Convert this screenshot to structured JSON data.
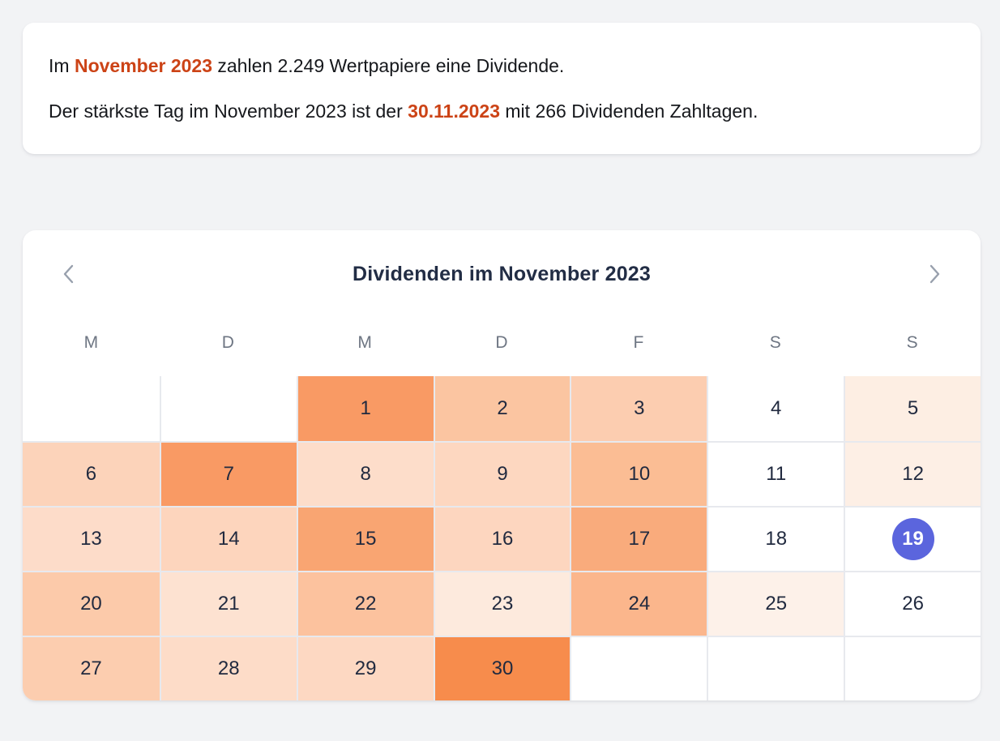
{
  "page": {
    "background": "#f2f3f5"
  },
  "summary_card": {
    "highlight_color": "#cc4316",
    "line1": {
      "prefix": "Im ",
      "highlight": "November 2023",
      "suffix": " zahlen 2.249 Wertpapiere eine Dividende."
    },
    "line2": {
      "prefix": "Der stärkste Tag im November 2023 ist der ",
      "highlight": "30.11.2023",
      "suffix": " mit 266 Dividenden Zahltagen."
    }
  },
  "calendar": {
    "title": "Dividenden im November 2023",
    "nav": {
      "prev_icon": "chevron-left",
      "next_icon": "chevron-right",
      "icon_color": "#98a0ad"
    },
    "weekdays": [
      "M",
      "D",
      "M",
      "D",
      "F",
      "S",
      "S"
    ],
    "leading_empty": 2,
    "trailing_empty": 3,
    "today_day": 19,
    "today_color": "#5b65dd",
    "grid_line_color": "#e7e9ee",
    "days": [
      {
        "day": 1,
        "color": "#f99a64"
      },
      {
        "day": 2,
        "color": "#fbc5a1"
      },
      {
        "day": 3,
        "color": "#fccdb0"
      },
      {
        "day": 4,
        "color": "#ffffff"
      },
      {
        "day": 5,
        "color": "#fdeee3"
      },
      {
        "day": 6,
        "color": "#fcd3ba"
      },
      {
        "day": 7,
        "color": "#f99a64"
      },
      {
        "day": 8,
        "color": "#fdddca"
      },
      {
        "day": 9,
        "color": "#fdd7c0"
      },
      {
        "day": 10,
        "color": "#fbbd94"
      },
      {
        "day": 11,
        "color": "#ffffff"
      },
      {
        "day": 12,
        "color": "#fdefe5"
      },
      {
        "day": 13,
        "color": "#fddcc9"
      },
      {
        "day": 14,
        "color": "#fdd5bd"
      },
      {
        "day": 15,
        "color": "#f9a572"
      },
      {
        "day": 16,
        "color": "#fdd6bf"
      },
      {
        "day": 17,
        "color": "#f9ab7c"
      },
      {
        "day": 18,
        "color": "#ffffff"
      },
      {
        "day": 19,
        "color": "#ffffff",
        "today": true
      },
      {
        "day": 20,
        "color": "#fccaaa"
      },
      {
        "day": 21,
        "color": "#fde2d1"
      },
      {
        "day": 22,
        "color": "#fcc29e"
      },
      {
        "day": 23,
        "color": "#fdeadd"
      },
      {
        "day": 24,
        "color": "#fbb68c"
      },
      {
        "day": 25,
        "color": "#fdf1e9"
      },
      {
        "day": 26,
        "color": "#ffffff"
      },
      {
        "day": 27,
        "color": "#fccdaf"
      },
      {
        "day": 28,
        "color": "#fddcc8"
      },
      {
        "day": 29,
        "color": "#fdd8c2"
      },
      {
        "day": 30,
        "color": "#f78c4c"
      }
    ]
  }
}
